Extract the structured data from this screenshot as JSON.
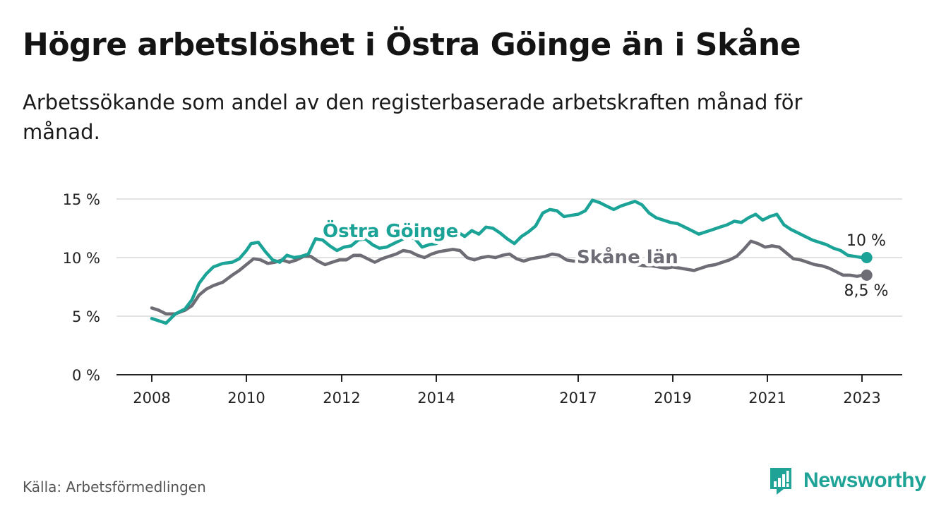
{
  "title": "Högre arbetslöshet i Östra Göinge än i Skåne",
  "subtitle": "Arbetssökande som andel av den registerbaserade arbetskraften månad för månad.",
  "source": "Källa: Arbetsförmedlingen",
  "brand": {
    "name": "Newsworthy",
    "logo_icon": "bar-chart-exclamation-icon",
    "color": "#1fa397"
  },
  "chart_data": {
    "type": "line",
    "title": "Högre arbetslöshet i Östra Göinge än i Skåne",
    "xlabel": "",
    "ylabel": "",
    "ylim": [
      0,
      15
    ],
    "xlim": [
      2008.0,
      2023.5
    ],
    "y_ticks": [
      {
        "value": 0,
        "label": "0 %"
      },
      {
        "value": 5,
        "label": "5 %"
      },
      {
        "value": 10,
        "label": "10 %"
      },
      {
        "value": 15,
        "label": "15 %"
      }
    ],
    "x_ticks": [
      {
        "value": 2008.0,
        "label": "2008"
      },
      {
        "value": 2010.0,
        "label": "2010"
      },
      {
        "value": 2012.0,
        "label": "2012"
      },
      {
        "value": 2014.0,
        "label": "2014"
      },
      {
        "value": 2017.0,
        "label": "2017"
      },
      {
        "value": 2019.0,
        "label": "2019"
      },
      {
        "value": 2021.0,
        "label": "2021"
      },
      {
        "value": 2023.0,
        "label": "2023"
      }
    ],
    "grid": true,
    "series": [
      {
        "name": "Östra Göinge",
        "label": "Östra Göinge",
        "color": "#1aa396",
        "end_label": "10 %",
        "points": [
          [
            2008.0,
            4.8
          ],
          [
            2008.15,
            4.6
          ],
          [
            2008.3,
            4.4
          ],
          [
            2008.5,
            5.2
          ],
          [
            2008.7,
            5.6
          ],
          [
            2008.85,
            6.4
          ],
          [
            2009.0,
            7.8
          ],
          [
            2009.15,
            8.6
          ],
          [
            2009.3,
            9.2
          ],
          [
            2009.5,
            9.5
          ],
          [
            2009.7,
            9.6
          ],
          [
            2009.85,
            9.9
          ],
          [
            2010.0,
            10.6
          ],
          [
            2010.1,
            11.2
          ],
          [
            2010.25,
            11.3
          ],
          [
            2010.4,
            10.5
          ],
          [
            2010.55,
            9.8
          ],
          [
            2010.7,
            9.6
          ],
          [
            2010.85,
            10.2
          ],
          [
            2011.0,
            10.0
          ],
          [
            2011.15,
            10.1
          ],
          [
            2011.3,
            10.3
          ],
          [
            2011.45,
            11.6
          ],
          [
            2011.6,
            11.5
          ],
          [
            2011.75,
            11.0
          ],
          [
            2011.9,
            10.6
          ],
          [
            2012.05,
            10.9
          ],
          [
            2012.2,
            11.0
          ],
          [
            2012.35,
            11.5
          ],
          [
            2012.5,
            11.6
          ],
          [
            2012.65,
            11.1
          ],
          [
            2012.8,
            10.8
          ],
          [
            2012.95,
            10.9
          ],
          [
            2013.1,
            11.2
          ],
          [
            2013.25,
            11.5
          ],
          [
            2013.4,
            11.8
          ],
          [
            2013.55,
            11.6
          ],
          [
            2013.7,
            10.9
          ],
          [
            2013.85,
            11.1
          ],
          [
            2014.0,
            11.2
          ],
          [
            2014.15,
            11.6
          ],
          [
            2014.3,
            11.9
          ],
          [
            2014.45,
            12.2
          ],
          [
            2014.6,
            11.8
          ],
          [
            2014.75,
            12.3
          ],
          [
            2014.9,
            12.0
          ],
          [
            2015.05,
            12.6
          ],
          [
            2015.2,
            12.5
          ],
          [
            2015.35,
            12.1
          ],
          [
            2015.5,
            11.6
          ],
          [
            2015.65,
            11.2
          ],
          [
            2015.8,
            11.8
          ],
          [
            2015.95,
            12.2
          ],
          [
            2016.1,
            12.7
          ],
          [
            2016.25,
            13.8
          ],
          [
            2016.4,
            14.1
          ],
          [
            2016.55,
            14.0
          ],
          [
            2016.7,
            13.5
          ],
          [
            2016.85,
            13.6
          ],
          [
            2017.0,
            13.7
          ],
          [
            2017.15,
            14.0
          ],
          [
            2017.3,
            14.9
          ],
          [
            2017.45,
            14.7
          ],
          [
            2017.6,
            14.4
          ],
          [
            2017.75,
            14.1
          ],
          [
            2017.9,
            14.4
          ],
          [
            2018.05,
            14.6
          ],
          [
            2018.2,
            14.8
          ],
          [
            2018.35,
            14.5
          ],
          [
            2018.5,
            13.8
          ],
          [
            2018.65,
            13.4
          ],
          [
            2018.8,
            13.2
          ],
          [
            2018.95,
            13.0
          ],
          [
            2019.1,
            12.9
          ],
          [
            2019.25,
            12.6
          ],
          [
            2019.4,
            12.3
          ],
          [
            2019.55,
            12.0
          ],
          [
            2019.7,
            12.2
          ],
          [
            2019.85,
            12.4
          ],
          [
            2020.0,
            12.6
          ],
          [
            2020.15,
            12.8
          ],
          [
            2020.3,
            13.1
          ],
          [
            2020.45,
            13.0
          ],
          [
            2020.6,
            13.4
          ],
          [
            2020.75,
            13.7
          ],
          [
            2020.9,
            13.2
          ],
          [
            2021.05,
            13.5
          ],
          [
            2021.2,
            13.7
          ],
          [
            2021.35,
            12.8
          ],
          [
            2021.5,
            12.4
          ],
          [
            2021.65,
            12.1
          ],
          [
            2021.8,
            11.8
          ],
          [
            2021.95,
            11.5
          ],
          [
            2022.1,
            11.3
          ],
          [
            2022.25,
            11.1
          ],
          [
            2022.4,
            10.8
          ],
          [
            2022.55,
            10.6
          ],
          [
            2022.7,
            10.2
          ],
          [
            2022.85,
            10.1
          ],
          [
            2023.0,
            10.0
          ],
          [
            2023.1,
            10.0
          ]
        ]
      },
      {
        "name": "Skåne län",
        "label": "Skåne län",
        "color": "#6e6d75",
        "end_label": "8,5 %",
        "points": [
          [
            2008.0,
            5.7
          ],
          [
            2008.15,
            5.5
          ],
          [
            2008.3,
            5.2
          ],
          [
            2008.5,
            5.2
          ],
          [
            2008.7,
            5.5
          ],
          [
            2008.85,
            5.9
          ],
          [
            2009.0,
            6.8
          ],
          [
            2009.15,
            7.3
          ],
          [
            2009.3,
            7.6
          ],
          [
            2009.5,
            7.9
          ],
          [
            2009.7,
            8.5
          ],
          [
            2009.85,
            8.9
          ],
          [
            2010.0,
            9.4
          ],
          [
            2010.15,
            9.9
          ],
          [
            2010.3,
            9.8
          ],
          [
            2010.45,
            9.5
          ],
          [
            2010.6,
            9.6
          ],
          [
            2010.75,
            9.8
          ],
          [
            2010.9,
            9.6
          ],
          [
            2011.05,
            9.8
          ],
          [
            2011.2,
            10.1
          ],
          [
            2011.35,
            10.1
          ],
          [
            2011.5,
            9.7
          ],
          [
            2011.65,
            9.4
          ],
          [
            2011.8,
            9.6
          ],
          [
            2011.95,
            9.8
          ],
          [
            2012.1,
            9.8
          ],
          [
            2012.25,
            10.2
          ],
          [
            2012.4,
            10.2
          ],
          [
            2012.55,
            9.9
          ],
          [
            2012.7,
            9.6
          ],
          [
            2012.85,
            9.9
          ],
          [
            2013.0,
            10.1
          ],
          [
            2013.15,
            10.3
          ],
          [
            2013.3,
            10.6
          ],
          [
            2013.45,
            10.5
          ],
          [
            2013.6,
            10.2
          ],
          [
            2013.75,
            10.0
          ],
          [
            2013.9,
            10.3
          ],
          [
            2014.05,
            10.5
          ],
          [
            2014.2,
            10.6
          ],
          [
            2014.35,
            10.7
          ],
          [
            2014.5,
            10.6
          ],
          [
            2014.65,
            10.0
          ],
          [
            2014.8,
            9.8
          ],
          [
            2014.95,
            10.0
          ],
          [
            2015.1,
            10.1
          ],
          [
            2015.25,
            10.0
          ],
          [
            2015.4,
            10.2
          ],
          [
            2015.55,
            10.3
          ],
          [
            2015.7,
            9.9
          ],
          [
            2015.85,
            9.7
          ],
          [
            2016.0,
            9.9
          ],
          [
            2016.15,
            10.0
          ],
          [
            2016.3,
            10.1
          ],
          [
            2016.45,
            10.3
          ],
          [
            2016.6,
            10.2
          ],
          [
            2016.75,
            9.8
          ],
          [
            2016.9,
            9.7
          ],
          [
            2017.05,
            9.7
          ],
          [
            2017.2,
            9.7
          ],
          [
            2017.35,
            9.9
          ],
          [
            2017.5,
            9.9
          ],
          [
            2017.65,
            10.0
          ],
          [
            2017.8,
            9.7
          ],
          [
            2017.95,
            9.6
          ],
          [
            2018.1,
            9.5
          ],
          [
            2018.25,
            9.4
          ],
          [
            2018.4,
            9.3
          ],
          [
            2018.55,
            9.3
          ],
          [
            2018.7,
            9.2
          ],
          [
            2018.85,
            9.1
          ],
          [
            2019.0,
            9.2
          ],
          [
            2019.15,
            9.1
          ],
          [
            2019.3,
            9.0
          ],
          [
            2019.45,
            8.9
          ],
          [
            2019.6,
            9.1
          ],
          [
            2019.75,
            9.3
          ],
          [
            2019.9,
            9.4
          ],
          [
            2020.05,
            9.6
          ],
          [
            2020.2,
            9.8
          ],
          [
            2020.35,
            10.1
          ],
          [
            2020.5,
            10.7
          ],
          [
            2020.65,
            11.4
          ],
          [
            2020.8,
            11.2
          ],
          [
            2020.95,
            10.9
          ],
          [
            2021.1,
            11.0
          ],
          [
            2021.25,
            10.9
          ],
          [
            2021.4,
            10.4
          ],
          [
            2021.55,
            9.9
          ],
          [
            2021.7,
            9.8
          ],
          [
            2021.85,
            9.6
          ],
          [
            2022.0,
            9.4
          ],
          [
            2022.15,
            9.3
          ],
          [
            2022.3,
            9.1
          ],
          [
            2022.45,
            8.8
          ],
          [
            2022.6,
            8.5
          ],
          [
            2022.75,
            8.5
          ],
          [
            2022.9,
            8.4
          ],
          [
            2023.0,
            8.5
          ],
          [
            2023.1,
            8.5
          ]
        ]
      }
    ],
    "annotations": [
      {
        "text": "Östra Göinge",
        "series": "Östra Göinge",
        "near_x": 2013.0
      },
      {
        "text": "Skåne län",
        "series": "Skåne län",
        "near_x": 2018.0
      }
    ]
  }
}
